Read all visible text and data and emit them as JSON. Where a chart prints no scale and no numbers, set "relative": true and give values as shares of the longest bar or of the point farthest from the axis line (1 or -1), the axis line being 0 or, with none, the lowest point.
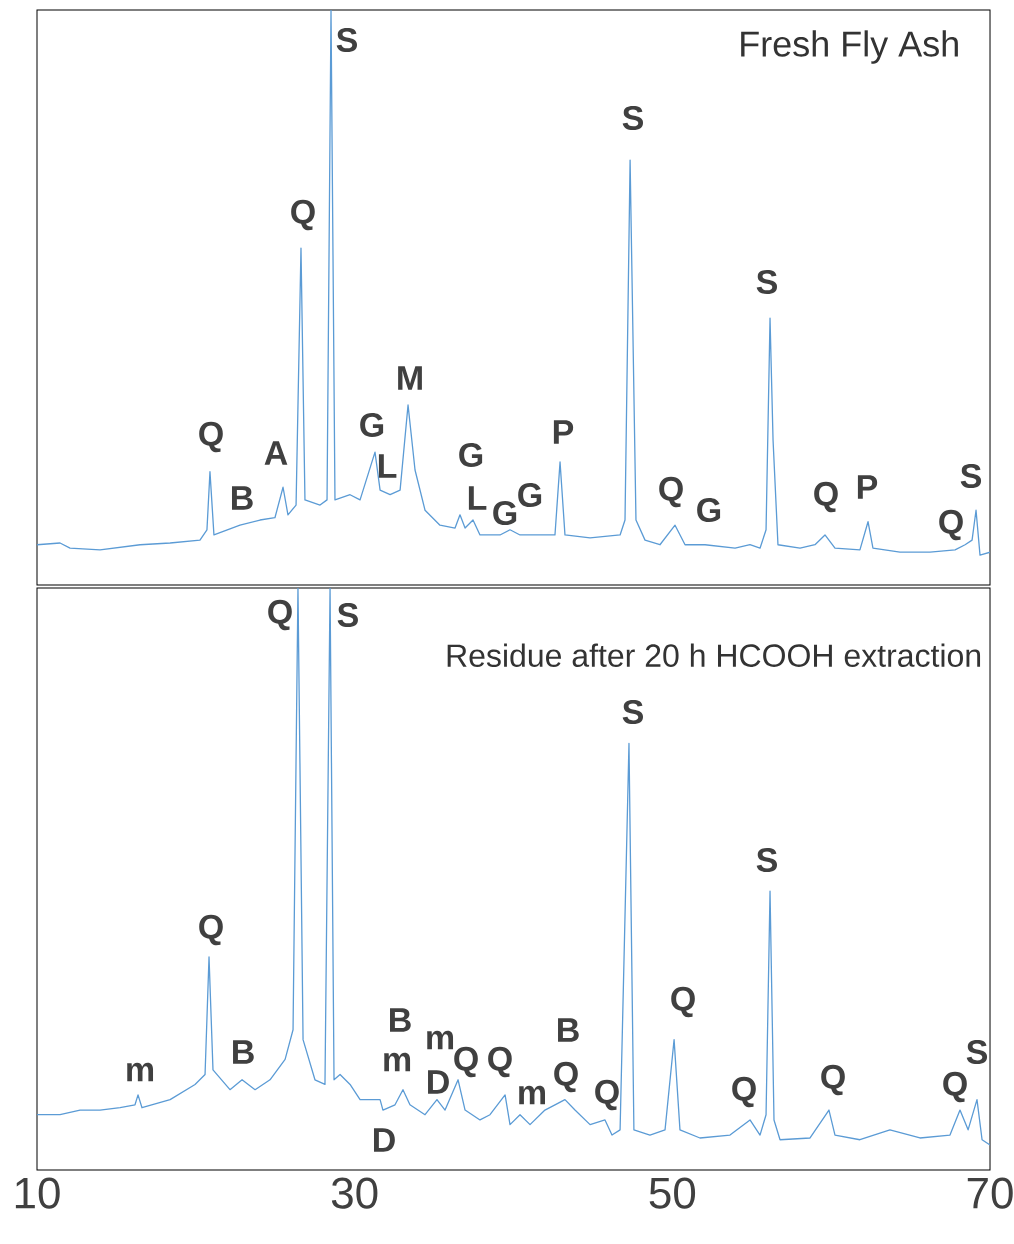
{
  "chart_data": [
    {
      "type": "line",
      "title": "Fresh Fly Ash",
      "relative": true,
      "color": "#5b9bd5",
      "xlim": [
        10,
        70
      ],
      "tick_labels": false,
      "x": [
        10.0,
        11.45,
        12.08,
        13.97,
        16.49,
        18.38,
        20.26,
        20.7,
        20.89,
        21.14,
        22.78,
        24.04,
        24.98,
        25.49,
        25.8,
        26.31,
        26.62,
        26.87,
        27.82,
        28.26,
        28.51,
        28.76,
        29.71,
        30.34,
        31.28,
        31.6,
        32.23,
        32.86,
        33.36,
        33.8,
        34.43,
        35.37,
        36.32,
        36.63,
        36.95,
        37.45,
        37.89,
        39.15,
        39.78,
        40.41,
        41.67,
        42.61,
        42.93,
        43.24,
        44.82,
        46.71,
        47.02,
        47.34,
        47.71,
        48.28,
        49.22,
        50.17,
        50.8,
        52.06,
        53.95,
        54.89,
        55.52,
        55.9,
        56.15,
        56.34,
        56.65,
        58.04,
        58.98,
        59.61,
        60.24,
        61.81,
        62.32,
        62.63,
        64.33,
        66.22,
        67.8,
        68.43,
        68.87,
        69.12,
        69.37,
        70.0
      ],
      "values": [
        0.07,
        0.073,
        0.064,
        0.061,
        0.07,
        0.073,
        0.078,
        0.096,
        0.197,
        0.087,
        0.104,
        0.113,
        0.117,
        0.17,
        0.122,
        0.139,
        0.586,
        0.148,
        0.139,
        0.148,
        1.0,
        0.148,
        0.157,
        0.148,
        0.231,
        0.165,
        0.157,
        0.165,
        0.313,
        0.2,
        0.13,
        0.104,
        0.099,
        0.122,
        0.099,
        0.113,
        0.087,
        0.087,
        0.096,
        0.087,
        0.087,
        0.087,
        0.214,
        0.087,
        0.082,
        0.087,
        0.113,
        0.739,
        0.113,
        0.078,
        0.07,
        0.104,
        0.07,
        0.07,
        0.064,
        0.07,
        0.064,
        0.096,
        0.464,
        0.252,
        0.07,
        0.064,
        0.07,
        0.087,
        0.064,
        0.061,
        0.11,
        0.064,
        0.057,
        0.057,
        0.061,
        0.07,
        0.078,
        0.13,
        0.052,
        0.057
      ],
      "annotations": [
        "S",
        "Q",
        "S",
        "S",
        "M",
        "Q",
        "A",
        "G",
        "L",
        "B",
        "G",
        "L",
        "G",
        "G",
        "P",
        "Q",
        "G",
        "Q",
        "P",
        "S",
        "Q"
      ]
    },
    {
      "type": "line",
      "title": "Residue after 20 h HCOOH extraction",
      "relative": true,
      "color": "#5b9bd5",
      "xlim": [
        10,
        70
      ],
      "xticks": [
        10,
        30,
        50,
        70
      ],
      "tick_labels": "x",
      "x": [
        10.0,
        11.45,
        12.71,
        13.97,
        15.23,
        16.17,
        16.36,
        16.61,
        18.38,
        19.95,
        20.58,
        20.83,
        21.08,
        22.15,
        22.91,
        23.73,
        24.67,
        25.62,
        26.12,
        26.43,
        26.75,
        27.5,
        28.13,
        28.45,
        28.7,
        29.08,
        29.71,
        30.34,
        31.6,
        31.78,
        32.54,
        33.04,
        33.48,
        34.43,
        35.18,
        35.69,
        36.51,
        36.95,
        37.89,
        38.52,
        39.47,
        39.78,
        40.41,
        41.04,
        41.98,
        42.61,
        43.24,
        43.87,
        44.82,
        45.76,
        46.2,
        46.71,
        47.27,
        47.58,
        48.59,
        49.54,
        50.11,
        50.48,
        51.74,
        53.63,
        54.89,
        55.52,
        55.9,
        56.15,
        56.4,
        56.78,
        58.67,
        59.86,
        60.24,
        61.81,
        63.7,
        65.59,
        67.48,
        68.11,
        68.62,
        69.18,
        69.5,
        70.0
      ],
      "values": [
        0.095,
        0.095,
        0.103,
        0.103,
        0.107,
        0.112,
        0.129,
        0.107,
        0.121,
        0.147,
        0.164,
        0.366,
        0.172,
        0.138,
        0.155,
        0.138,
        0.155,
        0.19,
        0.241,
        1.0,
        0.224,
        0.155,
        0.147,
        1.0,
        0.155,
        0.164,
        0.147,
        0.121,
        0.121,
        0.103,
        0.112,
        0.138,
        0.112,
        0.095,
        0.121,
        0.103,
        0.155,
        0.103,
        0.086,
        0.095,
        0.129,
        0.078,
        0.095,
        0.078,
        0.103,
        0.112,
        0.121,
        0.103,
        0.078,
        0.086,
        0.06,
        0.069,
        0.733,
        0.069,
        0.06,
        0.069,
        0.224,
        0.069,
        0.055,
        0.06,
        0.086,
        0.06,
        0.095,
        0.479,
        0.086,
        0.052,
        0.055,
        0.103,
        0.06,
        0.052,
        0.069,
        0.055,
        0.06,
        0.103,
        0.069,
        0.121,
        0.052,
        0.043
      ],
      "annotations": [
        "Q",
        "S",
        "S",
        "S",
        "Q",
        "Q",
        "B",
        "m",
        "m",
        "D",
        "Q",
        "Q",
        "m",
        "B",
        "Q",
        "Q",
        "Q",
        "Q",
        "Q",
        "S",
        "m",
        "B",
        "D"
      ]
    }
  ]
}
